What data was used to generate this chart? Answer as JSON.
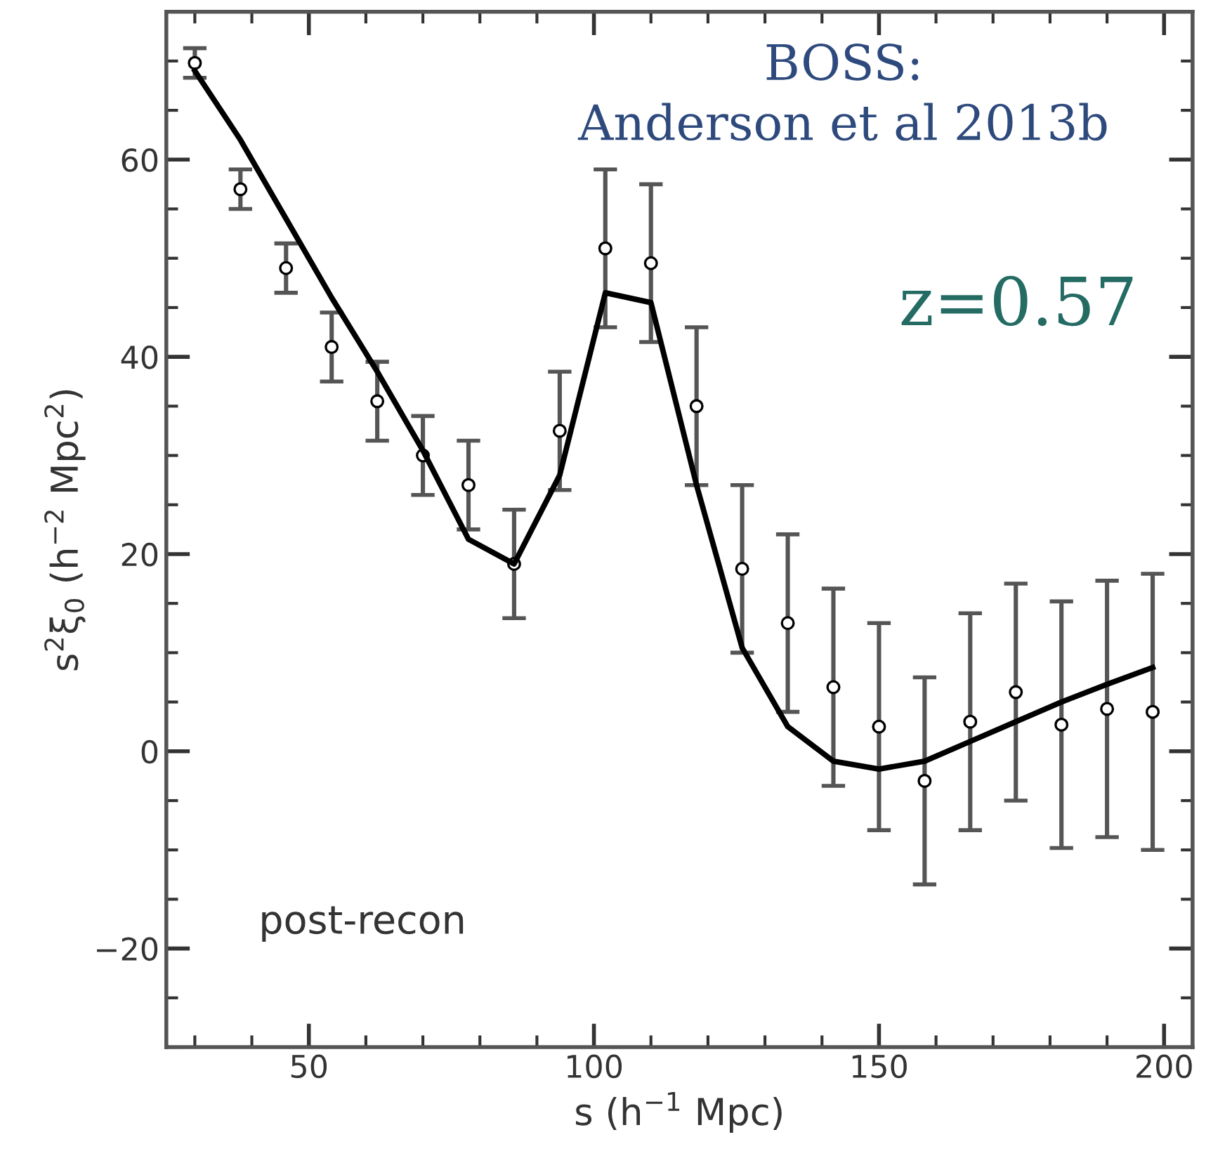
{
  "chart_data": {
    "type": "scatter",
    "xlabel": "s (h$^{−1}$ Mpc)",
    "ylabel": "s$^{2}$ξ$_{0}$ (h$^{−2}$ Mpc$^{2}$)",
    "x": [
      30,
      38,
      46,
      54,
      62,
      70,
      78,
      86,
      94,
      102,
      110,
      118,
      126,
      134,
      142,
      150,
      158,
      166,
      174,
      182,
      190,
      198
    ],
    "series": [
      {
        "color": "#000000",
        "marker": "circle",
        "values": [
          69.8,
          57,
          49,
          41,
          35.5,
          30,
          27,
          19,
          32.5,
          51,
          49.5,
          35,
          18.5,
          13,
          6.5,
          2.5,
          -3,
          3,
          6,
          2.7,
          4.3,
          4
        ],
        "errors": [
          1.5,
          2,
          2.5,
          3.5,
          4,
          4,
          4.5,
          5.5,
          6,
          8,
          8,
          8,
          8.5,
          9,
          10,
          10.5,
          10.5,
          11,
          11,
          12.5,
          13,
          14
        ]
      },
      {
        "type": "line",
        "color": "#000000",
        "line_style": "solid",
        "values": [
          69,
          62,
          54,
          46,
          38.5,
          30.5,
          21.5,
          19,
          28,
          46.5,
          45.5,
          27,
          10.5,
          2.5,
          -1,
          -1.8,
          -1,
          1,
          3,
          5,
          6.8,
          8.5
        ]
      }
    ],
    "xlim": [
      25,
      205
    ],
    "xticks": [
      50,
      100,
      150,
      200
    ],
    "ylim": [
      -30,
      75
    ],
    "yticks": [
      -20,
      0,
      20,
      40,
      60
    ],
    "grid": false,
    "annotations": [
      "BOSS:\nAnderson et al 2013b",
      "z=0.57",
      "post-recon"
    ]
  }
}
